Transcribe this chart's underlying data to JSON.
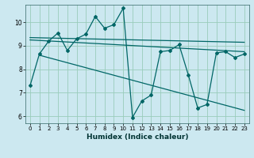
{
  "xlabel": "Humidex (Indice chaleur)",
  "background_color": "#cce8f0",
  "grid_color": "#99ccbb",
  "line_color": "#006666",
  "x_values": [
    0,
    1,
    2,
    3,
    4,
    5,
    6,
    7,
    8,
    9,
    10,
    11,
    12,
    13,
    14,
    15,
    16,
    17,
    18,
    19,
    20,
    21,
    22,
    23
  ],
  "y_main": [
    7.3,
    8.65,
    9.2,
    9.55,
    8.8,
    9.3,
    9.5,
    10.25,
    9.75,
    9.9,
    10.6,
    5.95,
    6.65,
    6.9,
    8.75,
    8.8,
    9.05,
    7.75,
    6.35,
    6.5,
    8.7,
    8.75,
    8.5,
    8.65
  ],
  "trend1_x": [
    0,
    23
  ],
  "trend1_y": [
    9.25,
    8.75
  ],
  "trend2_x": [
    0,
    23
  ],
  "trend2_y": [
    9.35,
    9.15
  ],
  "trend3_x": [
    1,
    23
  ],
  "trend3_y": [
    8.6,
    6.25
  ],
  "ylim": [
    5.7,
    10.75
  ],
  "xlim": [
    -0.5,
    23.5
  ],
  "yticks": [
    6,
    7,
    8,
    9,
    10
  ],
  "xticks": [
    0,
    1,
    2,
    3,
    4,
    5,
    6,
    7,
    8,
    9,
    10,
    11,
    12,
    13,
    14,
    15,
    16,
    17,
    18,
    19,
    20,
    21,
    22,
    23
  ]
}
